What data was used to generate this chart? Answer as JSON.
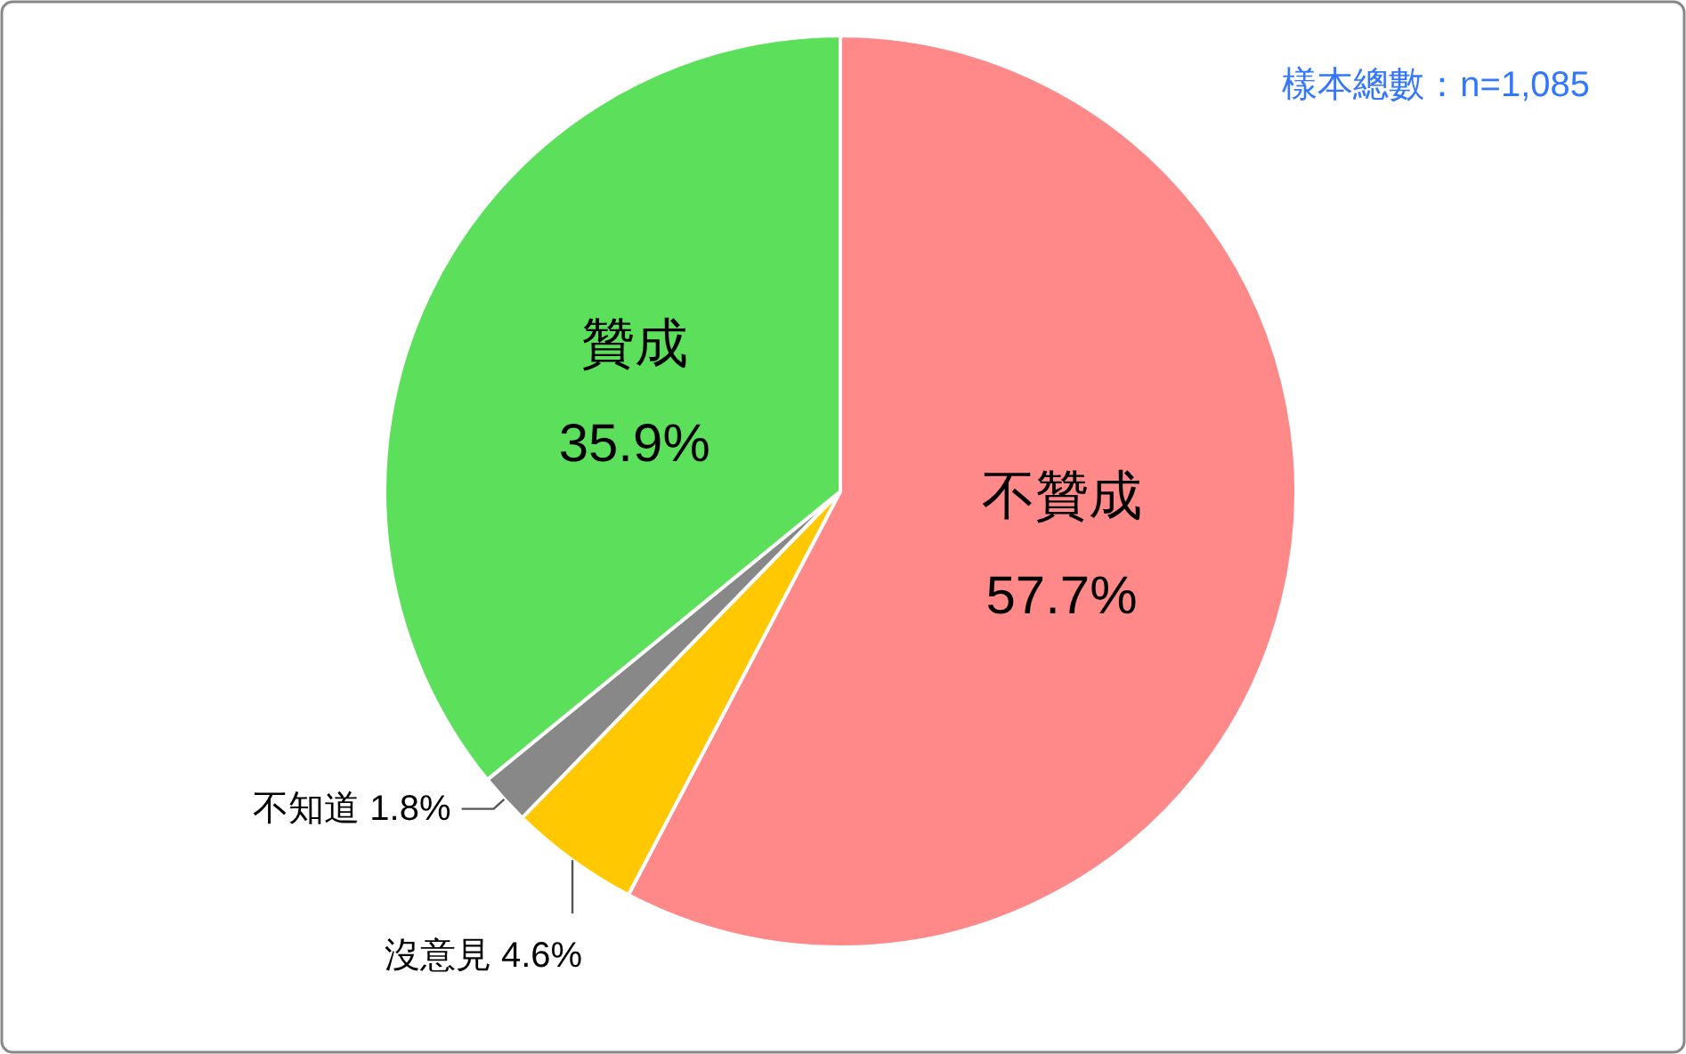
{
  "chart_data": {
    "type": "pie",
    "categories": [
      "不贊成",
      "沒意見",
      "不知道",
      "贊成"
    ],
    "values": [
      57.7,
      4.6,
      1.8,
      35.9
    ],
    "colors": [
      "#ff8888",
      "#ffc800",
      "#888888",
      "#5ce05c"
    ],
    "value_labels": [
      "57.7%",
      "4.6%",
      "1.8%",
      "35.9%"
    ],
    "annotations": [
      "樣本總數：n=1,085"
    ]
  }
}
